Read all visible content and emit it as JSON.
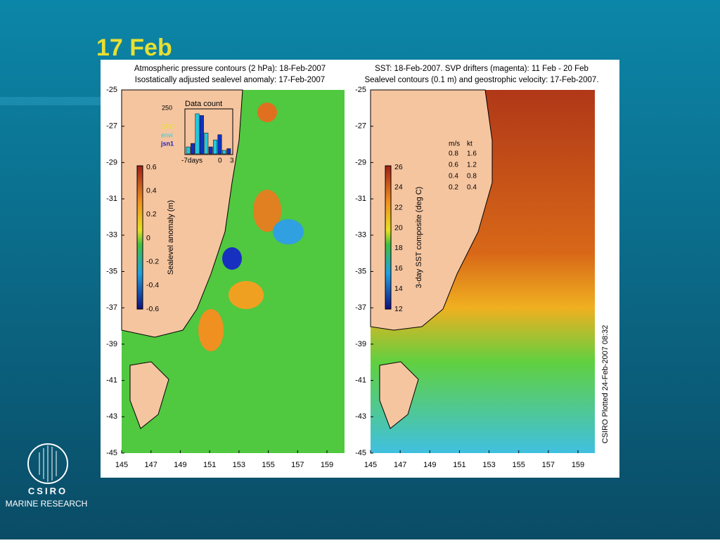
{
  "slide": {
    "title": "17 Feb"
  },
  "panels": [
    {
      "title_lines": [
        "Atmospheric pressure contours (2 hPa): 18-Feb-2007",
        "Isostatically adjusted sealevel anomaly: 17-Feb-2007"
      ],
      "lat_ticks": [
        "-25",
        "-27",
        "-29",
        "-31",
        "-33",
        "-35",
        "-37",
        "-39",
        "-41",
        "-43",
        "-45"
      ],
      "lon_ticks": [
        "145",
        "147",
        "149",
        "151",
        "153",
        "155",
        "157",
        "159"
      ],
      "colorbar": {
        "label": "Sealevel anomaly (m)",
        "ticks": [
          "0.6",
          "0.4",
          "0.2",
          "0",
          "-0.2",
          "-0.4",
          "-0.6"
        ]
      }
    },
    {
      "title_lines": [
        "SST: 18-Feb-2007. SVP drifters (magenta): 11 Feb - 20 Feb",
        "Sealevel contours (0.1 m) and geostrophic velocity: 17-Feb-2007."
      ],
      "lat_ticks": [
        "-25",
        "-27",
        "-29",
        "-31",
        "-33",
        "-35",
        "-37",
        "-39",
        "-41",
        "-43",
        "-45"
      ],
      "lon_ticks": [
        "145",
        "147",
        "149",
        "151",
        "153",
        "155",
        "157",
        "159"
      ],
      "colorbar": {
        "label": "3-day SST composite (deg C)",
        "ticks": [
          "26",
          "24",
          "22",
          "20",
          "18",
          "16",
          "14",
          "12"
        ]
      }
    }
  ],
  "inset": {
    "title": "Data count",
    "ymax_label": "250",
    "legend": [
      "GFO",
      "envi",
      "jsn1"
    ],
    "x_labels": [
      "-7days",
      "0",
      "3"
    ],
    "counts": [
      40,
      60,
      230,
      220,
      120,
      40,
      80,
      110,
      20,
      30
    ]
  },
  "velocity_legend": {
    "units": [
      "m/s",
      "kt"
    ],
    "rows": [
      [
        "0.8",
        "1.6"
      ],
      [
        "0.6",
        "1.2"
      ],
      [
        "0.4",
        "0.8"
      ],
      [
        "0.2",
        "0.4"
      ]
    ]
  },
  "credit": "CSIRO Plotted 24-Feb-2007 08:32",
  "logo": {
    "name": "CSIRO",
    "division": "MARINE RESEARCH"
  }
}
